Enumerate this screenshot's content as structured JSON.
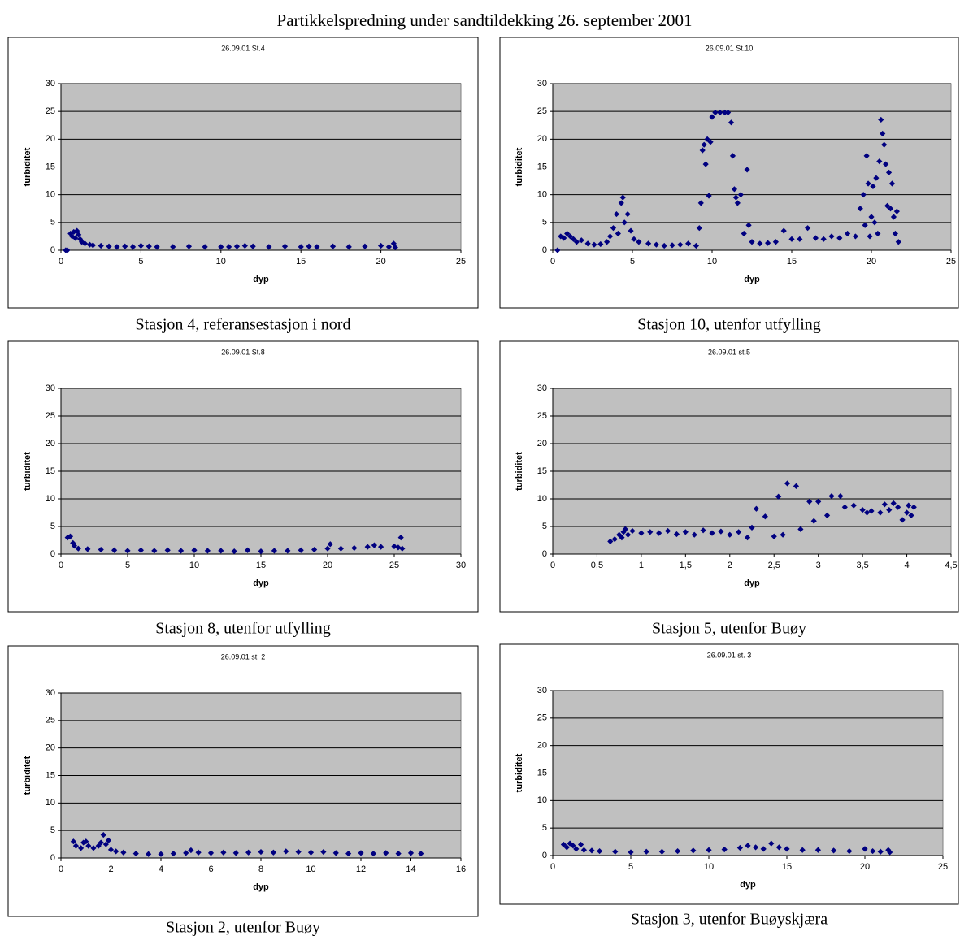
{
  "title": "Partikkelspredning under sandtildekking 26. september 2001",
  "chart_data": [
    {
      "type": "scatter",
      "title": "26.09.01 St.4",
      "caption": "Stasjon 4, referansestasjon i nord",
      "x_label": "dyp",
      "y_label": "turbiditet",
      "color": "#000080",
      "grid": true,
      "xlim": [
        0,
        25
      ],
      "xticks": [
        0,
        5,
        10,
        15,
        20,
        25
      ],
      "ylim": [
        0,
        30
      ],
      "yticks": [
        0,
        5,
        10,
        15,
        20,
        25,
        30
      ],
      "x": [
        0.3,
        0.4,
        0.6,
        0.7,
        0.8,
        0.9,
        1.0,
        1.1,
        1.2,
        1.3,
        1.5,
        1.8,
        2,
        2.5,
        3,
        3.5,
        4,
        4.5,
        5,
        5.5,
        6,
        7,
        8,
        9,
        10,
        10.5,
        11,
        11.5,
        12,
        13,
        14,
        15,
        15.5,
        16,
        17,
        18,
        19,
        20,
        20.5,
        20.8,
        20.9
      ],
      "values": [
        0,
        0,
        3,
        2.5,
        3.3,
        2.2,
        3.5,
        2.8,
        2,
        1.5,
        1.2,
        1,
        0.9,
        0.8,
        0.7,
        0.6,
        0.7,
        0.6,
        0.8,
        0.7,
        0.6,
        0.6,
        0.7,
        0.6,
        0.6,
        0.6,
        0.7,
        0.8,
        0.7,
        0.6,
        0.7,
        0.6,
        0.7,
        0.6,
        0.7,
        0.6,
        0.7,
        0.8,
        0.6,
        1.2,
        0.5
      ]
    },
    {
      "type": "scatter",
      "title": "26.09.01 St.10",
      "caption": "Stasjon 10, utenfor utfylling",
      "x_label": "dyp",
      "y_label": "turbiditet",
      "color": "#000080",
      "grid": true,
      "xlim": [
        0,
        25
      ],
      "xticks": [
        0,
        5,
        10,
        15,
        20,
        25
      ],
      "ylim": [
        0,
        30
      ],
      "yticks": [
        0,
        5,
        10,
        15,
        20,
        25,
        30
      ],
      "x": [
        0.3,
        0.5,
        0.7,
        0.9,
        1.1,
        1.3,
        1.5,
        1.8,
        2.2,
        2.6,
        3,
        3.4,
        3.6,
        3.8,
        4.0,
        4.1,
        4.3,
        4.4,
        4.5,
        4.7,
        4.9,
        5.1,
        5.4,
        6,
        6.5,
        7,
        7.5,
        8,
        8.5,
        9,
        9.2,
        9.3,
        9.4,
        9.5,
        9.6,
        9.7,
        9.8,
        9.9,
        10,
        10.2,
        10.5,
        10.8,
        11,
        11.2,
        11.3,
        11.4,
        11.5,
        11.6,
        11.8,
        12,
        12.2,
        12.3,
        12.5,
        13,
        13.5,
        14,
        14.5,
        15,
        15.5,
        16,
        16.5,
        17,
        17.5,
        18,
        18.5,
        19,
        19.3,
        19.5,
        19.6,
        19.7,
        19.8,
        19.9,
        20,
        20.1,
        20.2,
        20.3,
        20.4,
        20.5,
        20.6,
        20.7,
        20.8,
        20.9,
        21,
        21.1,
        21.2,
        21.3,
        21.4,
        21.5,
        21.6,
        21.7
      ],
      "values": [
        0,
        2.5,
        2.2,
        3,
        2.5,
        2,
        1.5,
        1.8,
        1.2,
        1,
        1.1,
        1.5,
        2.5,
        4,
        6.5,
        3,
        8.5,
        9.5,
        5,
        6.5,
        3.5,
        2,
        1.5,
        1.2,
        1,
        0.8,
        0.9,
        1,
        1.2,
        0.8,
        4,
        8.5,
        18,
        19,
        15.5,
        20,
        9.8,
        19.5,
        24,
        24.8,
        24.8,
        24.8,
        24.8,
        23,
        17,
        11,
        9.5,
        8.5,
        10,
        3,
        14.5,
        4.5,
        1.5,
        1.2,
        1.3,
        1.5,
        3.5,
        2,
        2,
        4,
        2.2,
        2,
        2.5,
        2.2,
        3,
        2.5,
        7.5,
        10,
        4.5,
        17,
        12,
        2.5,
        6,
        11.5,
        5,
        13,
        3,
        16,
        23.5,
        21,
        19,
        15.5,
        8,
        14,
        7.5,
        12,
        6,
        3,
        7,
        1.5
      ]
    },
    {
      "type": "scatter",
      "title": "26.09.01 St.8",
      "caption": "Stasjon 8, utenfor utfylling",
      "x_label": "dyp",
      "y_label": "turbiditet",
      "color": "#000080",
      "grid": true,
      "xlim": [
        0,
        30
      ],
      "xticks": [
        0,
        5,
        10,
        15,
        20,
        25,
        30
      ],
      "ylim": [
        0,
        30
      ],
      "yticks": [
        0,
        5,
        10,
        15,
        20,
        25,
        30
      ],
      "x": [
        0.5,
        0.7,
        0.9,
        1,
        1.3,
        2,
        3,
        4,
        5,
        6,
        7,
        8,
        9,
        10,
        11,
        12,
        13,
        14,
        15,
        16,
        17,
        18,
        19,
        20,
        20.2,
        21,
        22,
        23,
        23.5,
        24,
        25,
        25.3,
        25.5,
        25.6
      ],
      "values": [
        3,
        3.2,
        2,
        1.5,
        1,
        0.9,
        0.8,
        0.7,
        0.6,
        0.7,
        0.6,
        0.7,
        0.6,
        0.7,
        0.6,
        0.6,
        0.5,
        0.7,
        0.5,
        0.6,
        0.6,
        0.7,
        0.8,
        1,
        1.8,
        1,
        1.1,
        1.3,
        1.6,
        1.3,
        1.4,
        1.2,
        3,
        1
      ]
    },
    {
      "type": "scatter",
      "title": "26.09.01 st.5",
      "caption": "Stasjon 5, utenfor Buøy",
      "x_label": "dyp",
      "y_label": "turbiditet",
      "color": "#000080",
      "grid": true,
      "xlim": [
        0,
        4.5
      ],
      "xticks": [
        0,
        {
          "value": 0.5,
          "label": "0,5"
        },
        1,
        {
          "value": 1.5,
          "label": "1,5"
        },
        2,
        {
          "value": 2.5,
          "label": "2,5"
        },
        3,
        {
          "value": 3.5,
          "label": "3,5"
        },
        4,
        {
          "value": 4.5,
          "label": "4,5"
        }
      ],
      "ylim": [
        0,
        30
      ],
      "yticks": [
        0,
        5,
        10,
        15,
        20,
        25,
        30
      ],
      "x": [
        0.65,
        0.7,
        0.75,
        0.78,
        0.8,
        0.82,
        0.85,
        0.9,
        1,
        1.1,
        1.2,
        1.3,
        1.4,
        1.5,
        1.6,
        1.7,
        1.8,
        1.9,
        2,
        2.1,
        2.2,
        2.25,
        2.3,
        2.4,
        2.5,
        2.55,
        2.6,
        2.65,
        2.75,
        2.8,
        2.9,
        2.95,
        3,
        3.1,
        3.15,
        3.25,
        3.3,
        3.4,
        3.5,
        3.55,
        3.6,
        3.7,
        3.75,
        3.8,
        3.85,
        3.9,
        3.95,
        4,
        4.02,
        4.05,
        4.08
      ],
      "values": [
        2.3,
        2.7,
        3.5,
        3,
        4,
        4.5,
        3.5,
        4.2,
        3.8,
        4,
        3.8,
        4.2,
        3.6,
        4,
        3.5,
        4.3,
        3.8,
        4.1,
        3.5,
        4,
        3,
        4.8,
        8.2,
        6.8,
        3.2,
        10.4,
        3.5,
        12.8,
        12.3,
        4.5,
        9.5,
        6,
        9.5,
        7,
        10.5,
        10.5,
        8.5,
        8.8,
        8,
        7.5,
        7.8,
        7.5,
        9,
        8,
        9.2,
        8.5,
        6.2,
        7.5,
        8.8,
        7,
        8.5
      ]
    },
    {
      "type": "scatter",
      "title": "26.09.01 st. 2",
      "caption": "Stasjon 2, utenfor Buøy",
      "x_label": "dyp",
      "y_label": "turbiditet",
      "color": "#000080",
      "grid": true,
      "xlim": [
        0,
        16
      ],
      "xticks": [
        0,
        2,
        4,
        6,
        8,
        10,
        12,
        14,
        16
      ],
      "ylim": [
        0,
        30
      ],
      "yticks": [
        0,
        5,
        10,
        15,
        20,
        25,
        30
      ],
      "x": [
        0.5,
        0.6,
        0.8,
        0.9,
        1,
        1.1,
        1.3,
        1.5,
        1.6,
        1.7,
        1.8,
        1.9,
        2,
        2.2,
        2.5,
        3,
        3.5,
        4,
        4.5,
        5,
        5.2,
        5.5,
        6,
        6.5,
        7,
        7.5,
        8,
        8.5,
        9,
        9.5,
        10,
        10.5,
        11,
        11.5,
        12,
        12.5,
        13,
        13.5,
        14,
        14.4
      ],
      "values": [
        3,
        2.2,
        1.8,
        2.8,
        3,
        2.2,
        1.8,
        2.2,
        2.8,
        4.2,
        2.5,
        3.2,
        1.5,
        1.2,
        1,
        0.8,
        0.7,
        0.7,
        0.8,
        0.9,
        1.4,
        1,
        0.9,
        1,
        0.9,
        1,
        1.1,
        1,
        1.2,
        1.1,
        1,
        1.1,
        0.9,
        0.8,
        0.9,
        0.8,
        0.9,
        0.8,
        0.9,
        0.8
      ]
    },
    {
      "type": "scatter",
      "title": "26.09.01 st. 3",
      "caption": "Stasjon 3, utenfor Buøyskjæra",
      "x_label": "dyp",
      "y_label": "turbiditet",
      "color": "#000080",
      "grid": true,
      "xlim": [
        0,
        25
      ],
      "xticks": [
        0,
        5,
        10,
        15,
        20,
        25
      ],
      "ylim": [
        0,
        30
      ],
      "yticks": [
        0,
        5,
        10,
        15,
        20,
        25,
        30
      ],
      "x": [
        0.7,
        0.9,
        1.1,
        1.3,
        1.5,
        1.8,
        2,
        2.5,
        3,
        4,
        5,
        6,
        7,
        8,
        9,
        10,
        11,
        12,
        12.5,
        13,
        13.5,
        14,
        14.5,
        15,
        16,
        17,
        18,
        19,
        20,
        20.5,
        21,
        21.5,
        21.6
      ],
      "values": [
        2,
        1.5,
        2.2,
        1.8,
        1.2,
        2,
        1,
        0.9,
        0.8,
        0.7,
        0.6,
        0.7,
        0.7,
        0.8,
        0.9,
        1,
        1.1,
        1.4,
        1.8,
        1.5,
        1.2,
        2.2,
        1.5,
        1.2,
        1,
        1,
        0.9,
        0.8,
        1.2,
        0.8,
        0.7,
        1,
        0.6
      ]
    }
  ]
}
